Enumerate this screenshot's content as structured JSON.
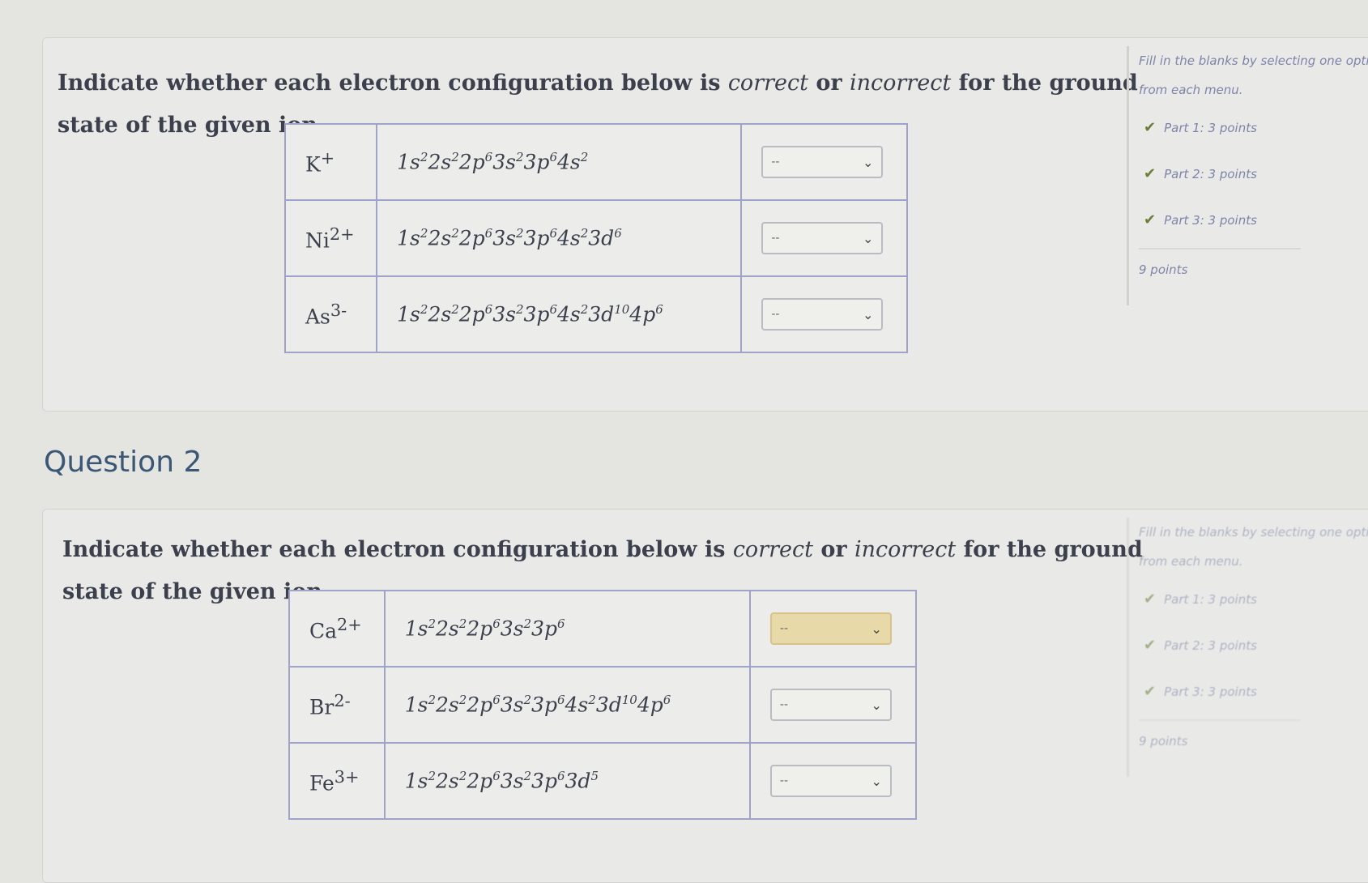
{
  "questions": [
    {
      "prompt_a": "Indicate whether each electron configuration below is ",
      "correct": "correct",
      "or": " or ",
      "incorrect": "incorrect",
      "prompt_b": " for the ground state of the given ion.",
      "side": {
        "hint": "Fill in the blanks by selecting one option from each menu.",
        "parts": [
          "Part 1: 3 points",
          "Part 2: 3 points",
          "Part 3: 3 points"
        ],
        "total": "9 points"
      },
      "rows": [
        {
          "ion": "K",
          "charge": "+",
          "config": [
            [
              "1s",
              "2"
            ],
            [
              "2s",
              "2"
            ],
            [
              "2p",
              "6"
            ],
            [
              "3s",
              "2"
            ],
            [
              "3p",
              "6"
            ],
            [
              "4s",
              "2"
            ]
          ],
          "selected": "--",
          "highlighted": false
        },
        {
          "ion": "Ni",
          "charge": "2+",
          "config": [
            [
              "1s",
              "2"
            ],
            [
              "2s",
              "2"
            ],
            [
              "2p",
              "6"
            ],
            [
              "3s",
              "2"
            ],
            [
              "3p",
              "6"
            ],
            [
              "4s",
              "2"
            ],
            [
              "3d",
              "6"
            ]
          ],
          "selected": "--",
          "highlighted": false
        },
        {
          "ion": "As",
          "charge": "3-",
          "config": [
            [
              "1s",
              "2"
            ],
            [
              "2s",
              "2"
            ],
            [
              "2p",
              "6"
            ],
            [
              "3s",
              "2"
            ],
            [
              "3p",
              "6"
            ],
            [
              "4s",
              "2"
            ],
            [
              "3d",
              "10"
            ],
            [
              "4p",
              "6"
            ]
          ],
          "selected": "--",
          "highlighted": false
        }
      ]
    },
    {
      "title": "Question 2",
      "prompt_a": "Indicate whether each electron configuration below is ",
      "correct": "correct",
      "or": " or ",
      "incorrect": "incorrect",
      "prompt_b": " for the ground state of the given ion.",
      "side": {
        "hint": "Fill in the blanks by selecting one option from each menu.",
        "parts": [
          "Part 1: 3 points",
          "Part 2: 3 points",
          "Part 3: 3 points"
        ],
        "total": "9 points"
      },
      "rows": [
        {
          "ion": "Ca",
          "charge": "2+",
          "config": [
            [
              "1s",
              "2"
            ],
            [
              "2s",
              "2"
            ],
            [
              "2p",
              "6"
            ],
            [
              "3s",
              "2"
            ],
            [
              "3p",
              "6"
            ]
          ],
          "selected": "--",
          "highlighted": true
        },
        {
          "ion": "Br",
          "charge": "2-",
          "config": [
            [
              "1s",
              "2"
            ],
            [
              "2s",
              "2"
            ],
            [
              "2p",
              "6"
            ],
            [
              "3s",
              "2"
            ],
            [
              "3p",
              "6"
            ],
            [
              "4s",
              "2"
            ],
            [
              "3d",
              "10"
            ],
            [
              "4p",
              "6"
            ]
          ],
          "selected": "--",
          "highlighted": false
        },
        {
          "ion": "Fe",
          "charge": "3+",
          "config": [
            [
              "1s",
              "2"
            ],
            [
              "2s",
              "2"
            ],
            [
              "2p",
              "6"
            ],
            [
              "3s",
              "2"
            ],
            [
              "3p",
              "6"
            ],
            [
              "3d",
              "5"
            ]
          ],
          "selected": "--",
          "highlighted": false
        }
      ]
    }
  ],
  "icons": {
    "part": "check-icon",
    "dropdown": "chevron-down-icon"
  },
  "colors": {
    "background": "#e4e5e1",
    "text": "#3b404c",
    "heading": "#3b5775",
    "table_border": "#9ea3c7",
    "highlight": "#e8d9a8"
  }
}
